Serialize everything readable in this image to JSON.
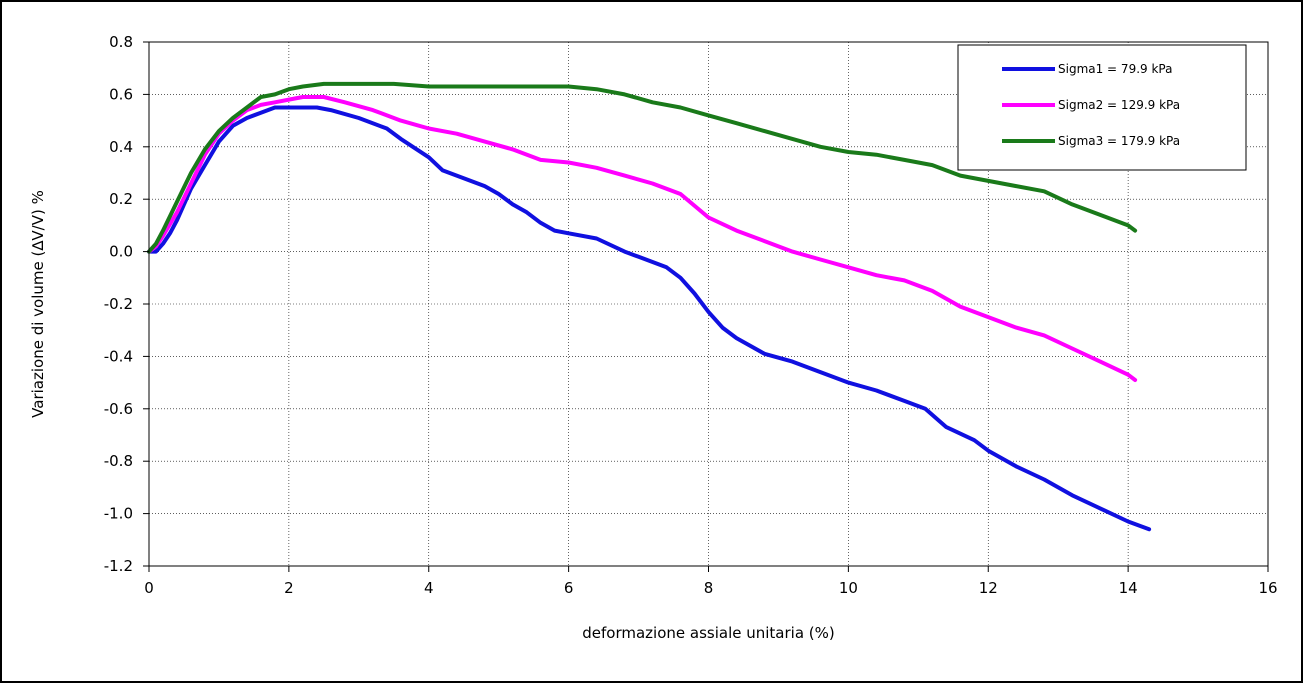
{
  "chart_data": {
    "type": "line",
    "title": "",
    "xlabel": "deformazione assiale unitaria (%)",
    "ylabel": "Variazione di volume (∆V/V) %",
    "xlim": [
      0,
      16
    ],
    "ylim": [
      -1.2,
      0.8
    ],
    "x_ticks": [
      0,
      2,
      4,
      6,
      8,
      10,
      12,
      14,
      16
    ],
    "y_ticks": [
      0.8,
      0.6,
      0.4,
      0.2,
      0.0,
      -0.2,
      -0.4,
      -0.6,
      -0.8,
      -1.0,
      -1.2
    ],
    "x_tick_labels": [
      "0",
      "2",
      "4",
      "6",
      "8",
      "10",
      "12",
      "14",
      "16"
    ],
    "y_tick_labels": [
      "0.8",
      "0.6",
      "0.4",
      "0.2",
      "0.0",
      "-0.2",
      "-0.4",
      "-0.6",
      "-0.8",
      "-1.0",
      "-1.2"
    ],
    "grid": true,
    "legend_position": "top-right",
    "series": [
      {
        "name": "Sigma1 = 79.9 kPa",
        "color": "#1010e0",
        "points": [
          [
            0,
            0
          ],
          [
            0.1,
            0
          ],
          [
            0.2,
            0.03
          ],
          [
            0.3,
            0.07
          ],
          [
            0.4,
            0.12
          ],
          [
            0.5,
            0.18
          ],
          [
            0.6,
            0.24
          ],
          [
            0.8,
            0.33
          ],
          [
            1.0,
            0.42
          ],
          [
            1.2,
            0.48
          ],
          [
            1.4,
            0.51
          ],
          [
            1.6,
            0.53
          ],
          [
            1.8,
            0.55
          ],
          [
            2.0,
            0.55
          ],
          [
            2.4,
            0.55
          ],
          [
            2.6,
            0.54
          ],
          [
            3.0,
            0.51
          ],
          [
            3.4,
            0.47
          ],
          [
            3.6,
            0.43
          ],
          [
            4.0,
            0.36
          ],
          [
            4.2,
            0.31
          ],
          [
            4.4,
            0.29
          ],
          [
            4.8,
            0.25
          ],
          [
            5.0,
            0.22
          ],
          [
            5.2,
            0.18
          ],
          [
            5.4,
            0.15
          ],
          [
            5.6,
            0.11
          ],
          [
            5.8,
            0.08
          ],
          [
            6.0,
            0.07
          ],
          [
            6.4,
            0.05
          ],
          [
            6.8,
            0.0
          ],
          [
            7.0,
            -0.02
          ],
          [
            7.4,
            -0.06
          ],
          [
            7.6,
            -0.1
          ],
          [
            7.8,
            -0.16
          ],
          [
            8.0,
            -0.23
          ],
          [
            8.2,
            -0.29
          ],
          [
            8.4,
            -0.33
          ],
          [
            8.8,
            -0.39
          ],
          [
            9.2,
            -0.42
          ],
          [
            9.6,
            -0.46
          ],
          [
            10.0,
            -0.5
          ],
          [
            10.4,
            -0.53
          ],
          [
            10.8,
            -0.57
          ],
          [
            11.1,
            -0.6
          ],
          [
            11.4,
            -0.67
          ],
          [
            11.8,
            -0.72
          ],
          [
            12.0,
            -0.76
          ],
          [
            12.4,
            -0.82
          ],
          [
            12.8,
            -0.87
          ],
          [
            13.2,
            -0.93
          ],
          [
            13.6,
            -0.98
          ],
          [
            14.0,
            -1.03
          ],
          [
            14.3,
            -1.06
          ]
        ]
      },
      {
        "name": "Sigma2 = 129.9 kPa",
        "color": "#ff00ff",
        "points": [
          [
            0,
            0
          ],
          [
            0.1,
            0.02
          ],
          [
            0.2,
            0.06
          ],
          [
            0.4,
            0.15
          ],
          [
            0.6,
            0.26
          ],
          [
            0.8,
            0.37
          ],
          [
            1.0,
            0.45
          ],
          [
            1.2,
            0.5
          ],
          [
            1.4,
            0.54
          ],
          [
            1.6,
            0.56
          ],
          [
            1.8,
            0.57
          ],
          [
            2.0,
            0.58
          ],
          [
            2.2,
            0.59
          ],
          [
            2.5,
            0.59
          ],
          [
            2.8,
            0.57
          ],
          [
            3.2,
            0.54
          ],
          [
            3.6,
            0.5
          ],
          [
            4.0,
            0.47
          ],
          [
            4.4,
            0.45
          ],
          [
            4.8,
            0.42
          ],
          [
            5.2,
            0.39
          ],
          [
            5.6,
            0.35
          ],
          [
            6.0,
            0.34
          ],
          [
            6.4,
            0.32
          ],
          [
            6.8,
            0.29
          ],
          [
            7.2,
            0.26
          ],
          [
            7.6,
            0.22
          ],
          [
            8.0,
            0.13
          ],
          [
            8.4,
            0.08
          ],
          [
            8.8,
            0.04
          ],
          [
            9.2,
            0.0
          ],
          [
            9.6,
            -0.03
          ],
          [
            10.0,
            -0.06
          ],
          [
            10.4,
            -0.09
          ],
          [
            10.8,
            -0.11
          ],
          [
            11.2,
            -0.15
          ],
          [
            11.6,
            -0.21
          ],
          [
            12.0,
            -0.25
          ],
          [
            12.4,
            -0.29
          ],
          [
            12.8,
            -0.32
          ],
          [
            13.2,
            -0.37
          ],
          [
            13.6,
            -0.42
          ],
          [
            14.0,
            -0.47
          ],
          [
            14.1,
            -0.49
          ]
        ]
      },
      {
        "name": "Sigma3 = 179.9 kPa",
        "color": "#1a7a1a",
        "points": [
          [
            0,
            0
          ],
          [
            0.1,
            0.03
          ],
          [
            0.2,
            0.08
          ],
          [
            0.4,
            0.19
          ],
          [
            0.6,
            0.3
          ],
          [
            0.8,
            0.39
          ],
          [
            1.0,
            0.46
          ],
          [
            1.2,
            0.51
          ],
          [
            1.4,
            0.55
          ],
          [
            1.6,
            0.59
          ],
          [
            1.8,
            0.6
          ],
          [
            2.0,
            0.62
          ],
          [
            2.2,
            0.63
          ],
          [
            2.5,
            0.64
          ],
          [
            3.0,
            0.64
          ],
          [
            3.5,
            0.64
          ],
          [
            4.0,
            0.63
          ],
          [
            5.0,
            0.63
          ],
          [
            6.0,
            0.63
          ],
          [
            6.4,
            0.62
          ],
          [
            6.8,
            0.6
          ],
          [
            7.2,
            0.57
          ],
          [
            7.6,
            0.55
          ],
          [
            8.0,
            0.52
          ],
          [
            8.4,
            0.49
          ],
          [
            8.8,
            0.46
          ],
          [
            9.2,
            0.43
          ],
          [
            9.6,
            0.4
          ],
          [
            10.0,
            0.38
          ],
          [
            10.4,
            0.37
          ],
          [
            10.8,
            0.35
          ],
          [
            11.2,
            0.33
          ],
          [
            11.6,
            0.29
          ],
          [
            12.0,
            0.27
          ],
          [
            12.4,
            0.25
          ],
          [
            12.8,
            0.23
          ],
          [
            13.2,
            0.18
          ],
          [
            13.6,
            0.14
          ],
          [
            14.0,
            0.1
          ],
          [
            14.1,
            0.08
          ]
        ]
      }
    ]
  }
}
